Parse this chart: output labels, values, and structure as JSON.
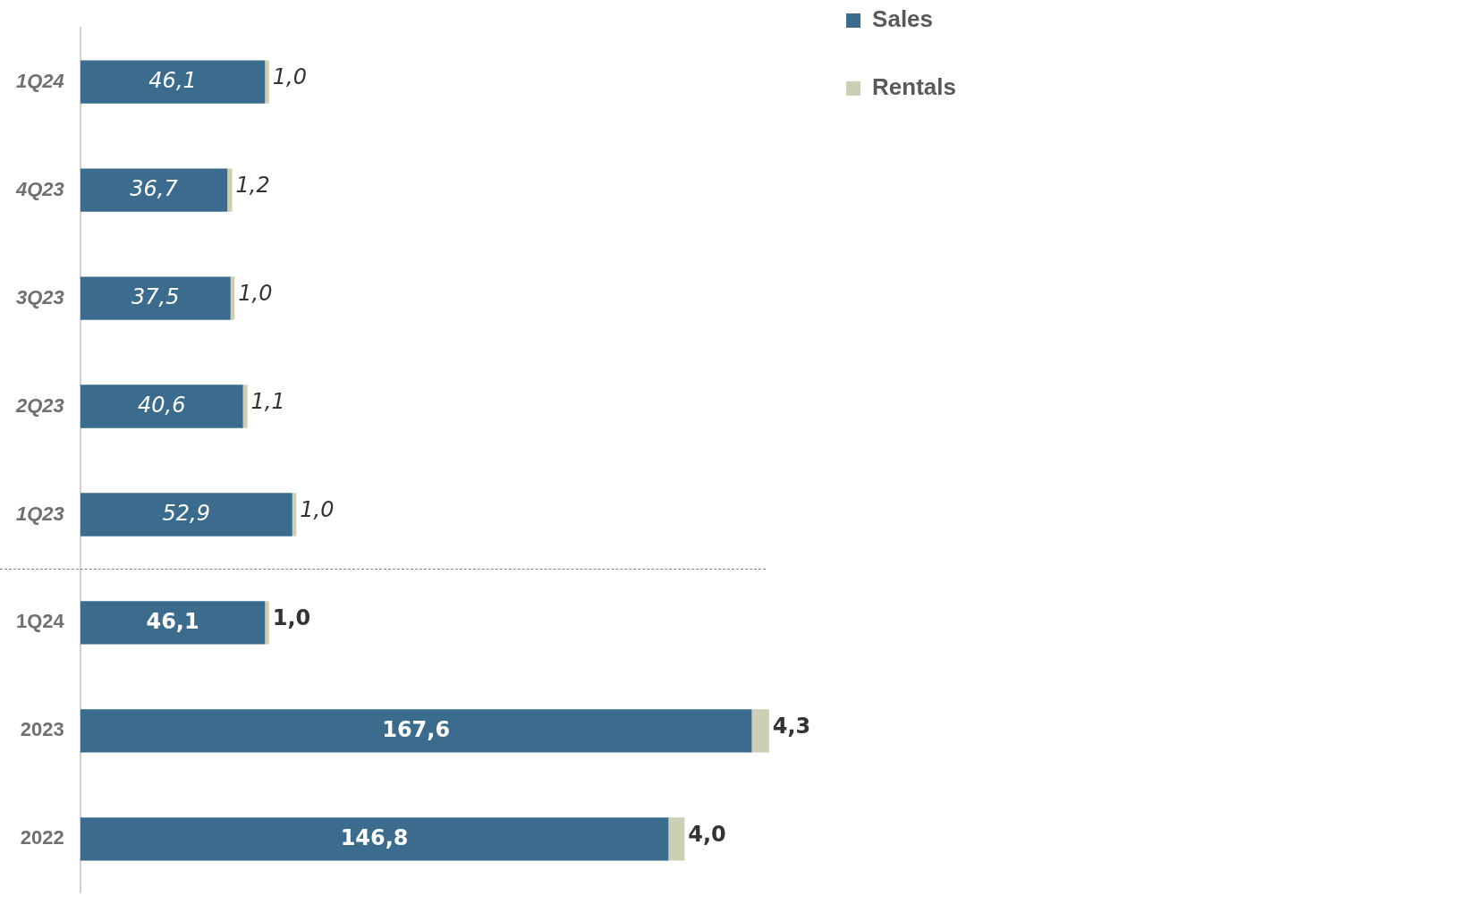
{
  "chart_data": {
    "type": "bar",
    "orientation": "horizontal",
    "stacked": true,
    "categories": [
      "1Q24",
      "4Q23",
      "3Q23",
      "2Q23",
      "1Q23",
      "1Q24",
      "2023",
      "2022"
    ],
    "series": [
      {
        "name": "Sales",
        "color": "#3b6c8e",
        "values": [
          46.1,
          36.7,
          37.5,
          40.6,
          52.9,
          46.1,
          167.6,
          146.8
        ],
        "value_labels": [
          "46,1",
          "36,7",
          "37,5",
          "40,6",
          "52,9",
          "46,1",
          "167,6",
          "146,8"
        ]
      },
      {
        "name": "Rentals",
        "color": "#cdcfb5",
        "values": [
          1.0,
          1.2,
          1.0,
          1.1,
          1.0,
          1.0,
          4.3,
          4.0
        ],
        "value_labels": [
          "1,0",
          "1,2",
          "1,0",
          "1,1",
          "1,0",
          "1,0",
          "4,3",
          "4,0"
        ]
      }
    ],
    "tick_labels": "y",
    "grid": false,
    "legend": "top right"
  }
}
